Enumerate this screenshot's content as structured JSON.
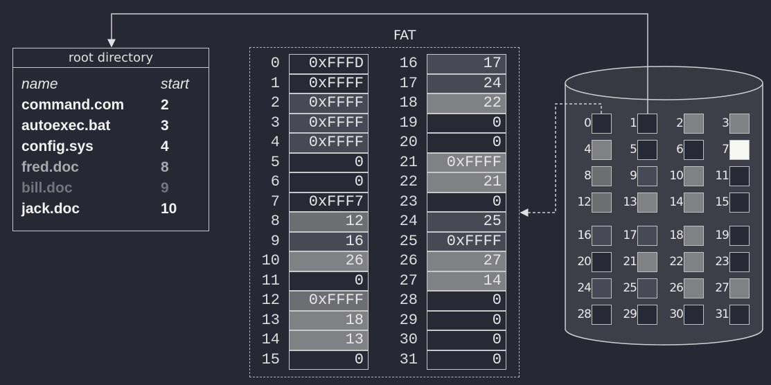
{
  "colors": {
    "background": "#262833",
    "free": "#272935",
    "tone_mid": "#474a54",
    "tone_gray": "#6d6e72",
    "tone_light": "#808184",
    "reserved": "#f8f8f2",
    "disk_body": "#3d3e48"
  },
  "root_directory": {
    "title": "root directory",
    "headers": {
      "name": "name",
      "start": "start"
    },
    "entries": [
      {
        "name": "command.com",
        "start": "2",
        "color": "#f2f2f2"
      },
      {
        "name": "autoexec.bat",
        "start": "3",
        "color": "#f2f2f2"
      },
      {
        "name": "config.sys",
        "start": "4",
        "color": "#f2f2f2"
      },
      {
        "name": "fred.doc",
        "start": "8",
        "color": "#a9a9ab"
      },
      {
        "name": "bill.doc",
        "start": "9",
        "color": "#74757a"
      },
      {
        "name": "jack.doc",
        "start": "10",
        "color": "#f2f2f2"
      }
    ]
  },
  "fat": {
    "title": "FAT",
    "entries": [
      {
        "index": "0",
        "value": "0xFFFD",
        "tone": "free"
      },
      {
        "index": "1",
        "value": "0xFFFF",
        "tone": "free"
      },
      {
        "index": "2",
        "value": "0xFFFF",
        "tone": "tone_mid"
      },
      {
        "index": "3",
        "value": "0xFFFF",
        "tone": "tone_mid"
      },
      {
        "index": "4",
        "value": "0xFFFF",
        "tone": "tone_mid"
      },
      {
        "index": "5",
        "value": "0",
        "tone": "free"
      },
      {
        "index": "6",
        "value": "0",
        "tone": "free"
      },
      {
        "index": "7",
        "value": "0xFFF7",
        "tone": "free"
      },
      {
        "index": "8",
        "value": "12",
        "tone": "tone_gray"
      },
      {
        "index": "9",
        "value": "16",
        "tone": "tone_mid"
      },
      {
        "index": "10",
        "value": "26",
        "tone": "tone_light"
      },
      {
        "index": "11",
        "value": "0",
        "tone": "free"
      },
      {
        "index": "12",
        "value": "0xFFFF",
        "tone": "tone_gray"
      },
      {
        "index": "13",
        "value": "18",
        "tone": "tone_light"
      },
      {
        "index": "14",
        "value": "13",
        "tone": "tone_light"
      },
      {
        "index": "15",
        "value": "0",
        "tone": "free"
      },
      {
        "index": "16",
        "value": "17",
        "tone": "tone_mid"
      },
      {
        "index": "17",
        "value": "24",
        "tone": "tone_mid"
      },
      {
        "index": "18",
        "value": "22",
        "tone": "tone_light"
      },
      {
        "index": "19",
        "value": "0",
        "tone": "free"
      },
      {
        "index": "20",
        "value": "0",
        "tone": "free"
      },
      {
        "index": "21",
        "value": "0xFFFF",
        "tone": "tone_light"
      },
      {
        "index": "22",
        "value": "21",
        "tone": "tone_light"
      },
      {
        "index": "23",
        "value": "0",
        "tone": "free"
      },
      {
        "index": "24",
        "value": "25",
        "tone": "tone_mid"
      },
      {
        "index": "25",
        "value": "0xFFFF",
        "tone": "tone_mid"
      },
      {
        "index": "26",
        "value": "27",
        "tone": "tone_light"
      },
      {
        "index": "27",
        "value": "14",
        "tone": "tone_light"
      },
      {
        "index": "28",
        "value": "0",
        "tone": "free"
      },
      {
        "index": "29",
        "value": "0",
        "tone": "free"
      },
      {
        "index": "30",
        "value": "0",
        "tone": "free"
      },
      {
        "index": "31",
        "value": "0",
        "tone": "free"
      }
    ]
  },
  "disk": {
    "blocks": [
      {
        "label": "0",
        "tone": "free"
      },
      {
        "label": "1",
        "tone": "free"
      },
      {
        "label": "2",
        "tone": "tone_light"
      },
      {
        "label": "3",
        "tone": "tone_light"
      },
      {
        "label": "4",
        "tone": "tone_light"
      },
      {
        "label": "5",
        "tone": "free"
      },
      {
        "label": "6",
        "tone": "free"
      },
      {
        "label": "7",
        "tone": "reserved"
      },
      {
        "label": "8",
        "tone": "tone_gray"
      },
      {
        "label": "9",
        "tone": "tone_mid"
      },
      {
        "label": "10",
        "tone": "tone_light"
      },
      {
        "label": "11",
        "tone": "free"
      },
      {
        "label": "12",
        "tone": "tone_gray"
      },
      {
        "label": "13",
        "tone": "tone_light"
      },
      {
        "label": "14",
        "tone": "tone_light"
      },
      {
        "label": "15",
        "tone": "free"
      },
      {
        "label": "16",
        "tone": "tone_mid"
      },
      {
        "label": "17",
        "tone": "tone_mid"
      },
      {
        "label": "18",
        "tone": "tone_light"
      },
      {
        "label": "19",
        "tone": "free"
      },
      {
        "label": "20",
        "tone": "free"
      },
      {
        "label": "21",
        "tone": "tone_light"
      },
      {
        "label": "22",
        "tone": "tone_light"
      },
      {
        "label": "23",
        "tone": "free"
      },
      {
        "label": "24",
        "tone": "tone_mid"
      },
      {
        "label": "25",
        "tone": "tone_mid"
      },
      {
        "label": "26",
        "tone": "tone_light"
      },
      {
        "label": "27",
        "tone": "tone_light"
      },
      {
        "label": "28",
        "tone": "free"
      },
      {
        "label": "29",
        "tone": "free"
      },
      {
        "label": "30",
        "tone": "free"
      },
      {
        "label": "31",
        "tone": "free"
      }
    ]
  }
}
